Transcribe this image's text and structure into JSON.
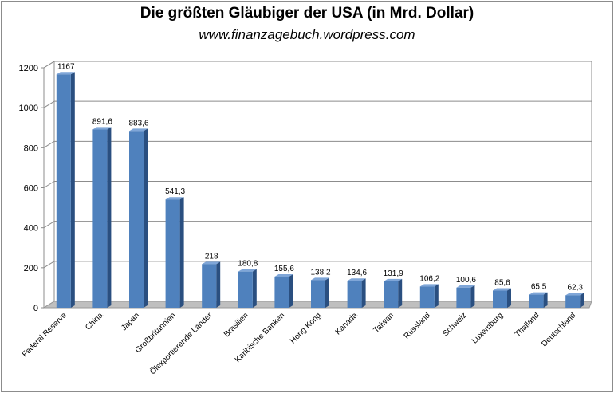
{
  "chart_data": {
    "type": "bar",
    "title": "Die größten Gläubiger der USA (in Mrd. Dollar)",
    "subtitle": "www.finanzagebuch.wordpress.com",
    "categories": [
      "Federal Reserve",
      "China",
      "Japan",
      "Großbritannien",
      "Ölexportierende Länder",
      "Brasilien",
      "Karibische Banken",
      "Hong Kong",
      "Kanada",
      "Taiwan",
      "Russland",
      "Schweiz",
      "Luxemburg",
      "Thailand",
      "Deutschland"
    ],
    "values": [
      1167,
      891.6,
      883.6,
      541.3,
      218,
      180.8,
      155.6,
      138.2,
      134.6,
      131.9,
      106.2,
      100.6,
      85.6,
      65.5,
      62.3
    ],
    "data_labels": [
      "1167",
      "891,6",
      "883,6",
      "541,3",
      "218",
      "180,8",
      "155,6",
      "138,2",
      "134,6",
      "131,9",
      "106,2",
      "100,6",
      "85,6",
      "65,5",
      "62,3"
    ],
    "yticks": [
      "0",
      "200",
      "400",
      "600",
      "800",
      "1000",
      "1200"
    ],
    "ylim": [
      0,
      1200
    ],
    "grid": true,
    "legend": "none",
    "colors": {
      "bar_front": "#4f81bd",
      "bar_side": "#2a4f80",
      "bar_top": "#7fa6d8",
      "floor": "#bfbfbf",
      "grid": "#8c8c8c"
    }
  }
}
